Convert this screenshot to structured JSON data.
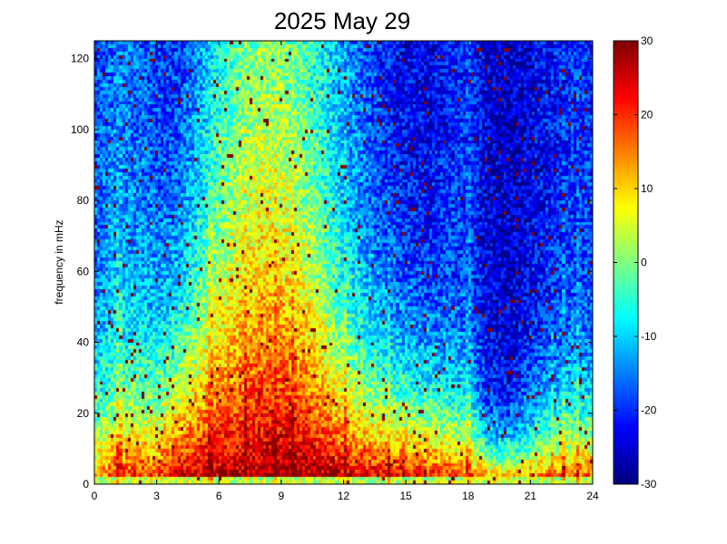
{
  "chart_data": {
    "type": "heatmap",
    "title": "2025 May 29",
    "xlabel": "",
    "ylabel": "frequency in mHz",
    "xlim": [
      0,
      24
    ],
    "ylim": [
      0,
      125
    ],
    "x_ticks": [
      0,
      3,
      6,
      9,
      12,
      15,
      18,
      21,
      24
    ],
    "y_ticks": [
      0,
      20,
      40,
      60,
      80,
      100,
      120
    ],
    "colorbar": {
      "colormap": "jet",
      "range": [
        -30,
        30
      ],
      "ticks": [
        -30,
        -20,
        -10,
        0,
        10,
        20,
        30
      ]
    },
    "grid": {
      "time_bins": 180,
      "freq_bins": 125
    },
    "time_profile_hours": [
      0,
      1,
      2,
      3,
      4,
      5,
      6,
      7,
      8,
      9,
      10,
      11,
      12,
      13,
      14,
      15,
      16,
      17,
      18,
      19,
      20,
      21,
      22,
      23,
      24
    ],
    "low_band_level": [
      16,
      22,
      22,
      22,
      27,
      28,
      28,
      28,
      29,
      30,
      30,
      29,
      28,
      28,
      27,
      27,
      26,
      24,
      21,
      20,
      20,
      20,
      21,
      22,
      22
    ],
    "high_band_level": [
      -18,
      -16,
      -17,
      -20,
      -22,
      -18,
      -12,
      -8,
      -6,
      -6,
      -8,
      -10,
      -14,
      -18,
      -22,
      -24,
      -24,
      -22,
      -20,
      -25,
      -26,
      -24,
      -22,
      -20,
      -20
    ],
    "decay_scale_mhz": [
      25,
      28,
      30,
      32,
      40,
      50,
      60,
      70,
      75,
      70,
      60,
      45,
      35,
      30,
      30,
      28,
      26,
      24,
      20,
      12,
      12,
      15,
      18,
      20,
      20
    ],
    "vertical_streaks_hours": [
      1.2,
      5.6,
      7.3,
      8.7,
      9.5,
      12.1,
      14.2,
      17.9,
      18.1,
      22.1,
      22.6,
      23.3
    ]
  }
}
